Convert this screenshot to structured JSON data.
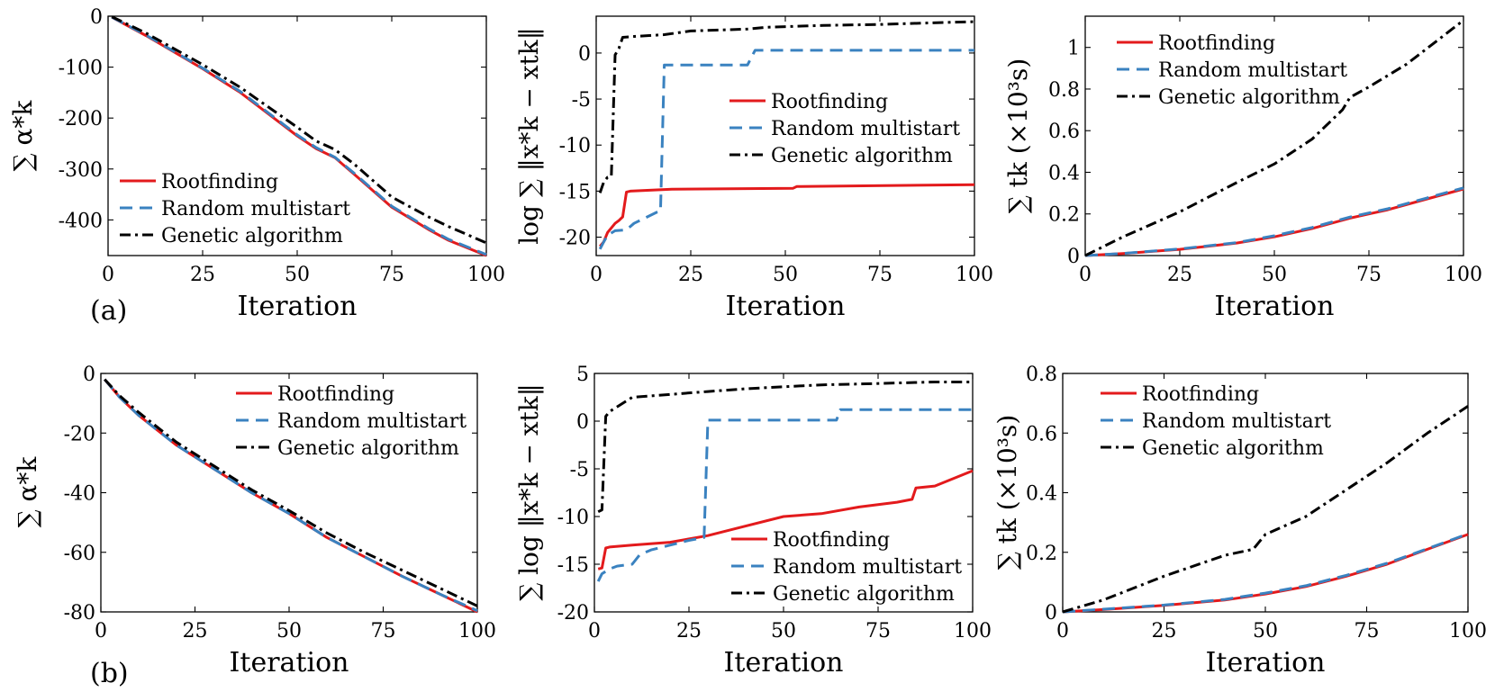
{
  "colors": {
    "rootfinding": "#e31a1c",
    "random": "#3a82c0",
    "genetic": "#000000"
  },
  "panel_labels": [
    "(a)",
    "(b)"
  ],
  "chart_data": [
    {
      "id": "a1",
      "type": "line",
      "xlabel": "Iteration",
      "ylabel": "∑ α*k",
      "xlim": [
        0,
        100
      ],
      "ylim": [
        -470,
        0
      ],
      "xticks": [
        0,
        25,
        50,
        75,
        100
      ],
      "yticks": [
        0,
        -100,
        -200,
        -300,
        -400
      ],
      "legend_position": "bottom-left",
      "series": [
        {
          "name": "Rootfinding",
          "style": "solid",
          "color_key": "rootfinding",
          "x": [
            1,
            10,
            25,
            35,
            50,
            55,
            60,
            65,
            75,
            85,
            90,
            100
          ],
          "y": [
            -2,
            -38,
            -103,
            -150,
            -235,
            -260,
            -278,
            -310,
            -375,
            -420,
            -440,
            -470
          ]
        },
        {
          "name": "Random multistart",
          "style": "dashed",
          "color_key": "random",
          "x": [
            1,
            10,
            25,
            35,
            50,
            55,
            60,
            65,
            75,
            85,
            90,
            100
          ],
          "y": [
            -2,
            -37,
            -102,
            -148,
            -233,
            -258,
            -277,
            -308,
            -373,
            -418,
            -438,
            -468
          ]
        },
        {
          "name": "Genetic algorithm",
          "style": "dashdot",
          "color_key": "genetic",
          "x": [
            1,
            10,
            25,
            35,
            50,
            55,
            60,
            65,
            75,
            85,
            90,
            100
          ],
          "y": [
            -1,
            -33,
            -95,
            -140,
            -218,
            -245,
            -262,
            -290,
            -355,
            -395,
            -413,
            -445
          ]
        }
      ]
    },
    {
      "id": "a2",
      "type": "line",
      "xlabel": "Iteration",
      "ylabel": "log ∑ ‖x*k − xtk‖",
      "xlim": [
        0,
        100
      ],
      "ylim": [
        -22,
        4
      ],
      "xticks": [
        0,
        25,
        50,
        75,
        100
      ],
      "yticks": [
        0,
        -5,
        -10,
        -15,
        -20
      ],
      "legend_position": "center-right",
      "series": [
        {
          "name": "Rootfinding",
          "style": "solid",
          "color_key": "rootfinding",
          "x": [
            1,
            2,
            3,
            4,
            5,
            6,
            7,
            8,
            9,
            20,
            52,
            53,
            100
          ],
          "y": [
            -21,
            -20.5,
            -19.5,
            -19,
            -18.5,
            -18.2,
            -17.8,
            -15.1,
            -15,
            -14.8,
            -14.7,
            -14.5,
            -14.3
          ]
        },
        {
          "name": "Random multistart",
          "style": "dashed",
          "color_key": "random",
          "x": [
            1,
            2,
            3,
            5,
            8,
            10,
            16,
            17,
            18,
            40,
            42,
            100
          ],
          "y": [
            -21.3,
            -20.5,
            -19.8,
            -19.3,
            -19.2,
            -18.5,
            -17.3,
            -17.2,
            -1.3,
            -1.3,
            0.3,
            0.3
          ]
        },
        {
          "name": "Genetic algorithm",
          "style": "dashdot",
          "color_key": "genetic",
          "x": [
            1,
            2,
            3,
            4,
            5,
            6,
            7,
            10,
            18,
            25,
            40,
            45,
            60,
            75,
            90,
            100
          ],
          "y": [
            -15.2,
            -14,
            -13.5,
            -13.4,
            -0.2,
            0.5,
            1.7,
            1.8,
            2.0,
            2.4,
            2.6,
            2.8,
            3.0,
            3.1,
            3.3,
            3.4
          ]
        }
      ]
    },
    {
      "id": "a3",
      "type": "line",
      "xlabel": "Iteration",
      "ylabel": "∑ tk (×10³s)",
      "xlim": [
        0,
        100
      ],
      "ylim": [
        0,
        1.15
      ],
      "xticks": [
        0,
        25,
        50,
        75,
        100
      ],
      "yticks": [
        0,
        0.2,
        0.4,
        0.6,
        0.8,
        1
      ],
      "legend_position": "top-left",
      "series": [
        {
          "name": "Rootfinding",
          "style": "solid",
          "color_key": "rootfinding",
          "x": [
            0,
            10,
            25,
            40,
            50,
            60,
            70,
            80,
            90,
            100
          ],
          "y": [
            0,
            0.01,
            0.03,
            0.06,
            0.09,
            0.13,
            0.18,
            0.22,
            0.27,
            0.32
          ]
        },
        {
          "name": "Random multistart",
          "style": "dashed",
          "color_key": "random",
          "x": [
            0,
            10,
            25,
            40,
            50,
            60,
            70,
            80,
            90,
            100
          ],
          "y": [
            0,
            0.01,
            0.032,
            0.062,
            0.095,
            0.135,
            0.185,
            0.225,
            0.275,
            0.325
          ]
        },
        {
          "name": "Genetic algorithm",
          "style": "dashdot",
          "color_key": "genetic",
          "x": [
            0,
            10,
            25,
            40,
            50,
            60,
            68,
            70,
            75,
            85,
            100
          ],
          "y": [
            0,
            0.09,
            0.21,
            0.35,
            0.44,
            0.56,
            0.7,
            0.76,
            0.81,
            0.92,
            1.13
          ]
        }
      ]
    },
    {
      "id": "b1",
      "type": "line",
      "xlabel": "Iteration",
      "ylabel": "∑ α*k",
      "xlim": [
        0,
        100
      ],
      "ylim": [
        -80,
        0
      ],
      "xticks": [
        0,
        25,
        50,
        75,
        100
      ],
      "yticks": [
        0,
        -20,
        -40,
        -60,
        -80
      ],
      "legend_position": "top-right",
      "series": [
        {
          "name": "Rootfinding",
          "style": "solid",
          "color_key": "rootfinding",
          "x": [
            1,
            5,
            10,
            20,
            30,
            40,
            50,
            60,
            70,
            80,
            90,
            100
          ],
          "y": [
            -2,
            -8,
            -14,
            -24,
            -32,
            -40,
            -47,
            -55,
            -61.5,
            -68,
            -74,
            -80
          ]
        },
        {
          "name": "Random multistart",
          "style": "dashed",
          "color_key": "random",
          "x": [
            1,
            5,
            10,
            20,
            30,
            40,
            50,
            60,
            70,
            80,
            90,
            100
          ],
          "y": [
            -2,
            -8,
            -14,
            -24,
            -32,
            -40,
            -47,
            -55,
            -61.5,
            -68,
            -74,
            -79.6
          ]
        },
        {
          "name": "Genetic algorithm",
          "style": "dashdot",
          "color_key": "genetic",
          "x": [
            1,
            5,
            10,
            20,
            30,
            40,
            50,
            60,
            70,
            80,
            90,
            100
          ],
          "y": [
            -2,
            -7.5,
            -13,
            -23,
            -31,
            -39,
            -46,
            -53.5,
            -60,
            -66,
            -72,
            -78
          ]
        }
      ]
    },
    {
      "id": "b2",
      "type": "line",
      "xlabel": "Iteration",
      "ylabel": "∑ log ‖x*k − xtk‖",
      "xlim": [
        0,
        100
      ],
      "ylim": [
        -20,
        5
      ],
      "xticks": [
        0,
        25,
        50,
        75,
        100
      ],
      "yticks": [
        5,
        0,
        -5,
        -10,
        -15,
        -20
      ],
      "legend_position": "bottom-right",
      "series": [
        {
          "name": "Rootfinding",
          "style": "solid",
          "color_key": "rootfinding",
          "x": [
            1,
            2,
            3,
            4,
            10,
            20,
            30,
            40,
            50,
            60,
            70,
            80,
            84,
            85,
            90,
            95,
            100
          ],
          "y": [
            -15.5,
            -15.4,
            -13.3,
            -13.2,
            -13,
            -12.7,
            -12,
            -11,
            -10,
            -9.7,
            -9,
            -8.5,
            -8.2,
            -7,
            -6.8,
            -6,
            -5.2
          ]
        },
        {
          "name": "Random multistart",
          "style": "dashed",
          "color_key": "random",
          "x": [
            1,
            2,
            4,
            6,
            10,
            12,
            15,
            20,
            25,
            29,
            30,
            64,
            65,
            100
          ],
          "y": [
            -16.8,
            -16,
            -15.5,
            -15.2,
            -15,
            -14,
            -13.5,
            -13,
            -12.5,
            -12.2,
            0.1,
            0.1,
            1.2,
            1.2
          ]
        },
        {
          "name": "Genetic algorithm",
          "style": "dashdot",
          "color_key": "genetic",
          "x": [
            1,
            2,
            3,
            4,
            6,
            10,
            20,
            30,
            40,
            50,
            60,
            70,
            80,
            90,
            100
          ],
          "y": [
            -9.5,
            -9.3,
            0.5,
            1.0,
            1.5,
            2.5,
            2.8,
            3.1,
            3.4,
            3.6,
            3.8,
            3.9,
            4.0,
            4.1,
            4.1
          ]
        }
      ]
    },
    {
      "id": "b3",
      "type": "line",
      "xlabel": "Iteration",
      "ylabel": "∑ tk (×10³s)",
      "xlim": [
        0,
        100
      ],
      "ylim": [
        0,
        0.8
      ],
      "xticks": [
        0,
        25,
        50,
        75,
        100
      ],
      "yticks": [
        0,
        0.2,
        0.4,
        0.6,
        0.8
      ],
      "legend_position": "top-left",
      "series": [
        {
          "name": "Rootfinding",
          "style": "solid",
          "color_key": "rootfinding",
          "x": [
            0,
            10,
            25,
            40,
            50,
            60,
            70,
            80,
            90,
            100
          ],
          "y": [
            0,
            0.008,
            0.022,
            0.04,
            0.06,
            0.085,
            0.12,
            0.16,
            0.21,
            0.26
          ]
        },
        {
          "name": "Random multistart",
          "style": "dashed",
          "color_key": "random",
          "x": [
            0,
            10,
            25,
            40,
            50,
            60,
            70,
            80,
            90,
            100
          ],
          "y": [
            0,
            0.009,
            0.023,
            0.042,
            0.063,
            0.088,
            0.123,
            0.163,
            0.212,
            0.262
          ]
        },
        {
          "name": "Genetic algorithm",
          "style": "dashdot",
          "color_key": "genetic",
          "x": [
            0,
            10,
            25,
            40,
            47,
            50,
            60,
            70,
            80,
            90,
            100
          ],
          "y": [
            0,
            0.04,
            0.12,
            0.19,
            0.21,
            0.26,
            0.32,
            0.41,
            0.5,
            0.6,
            0.69
          ]
        }
      ]
    }
  ]
}
